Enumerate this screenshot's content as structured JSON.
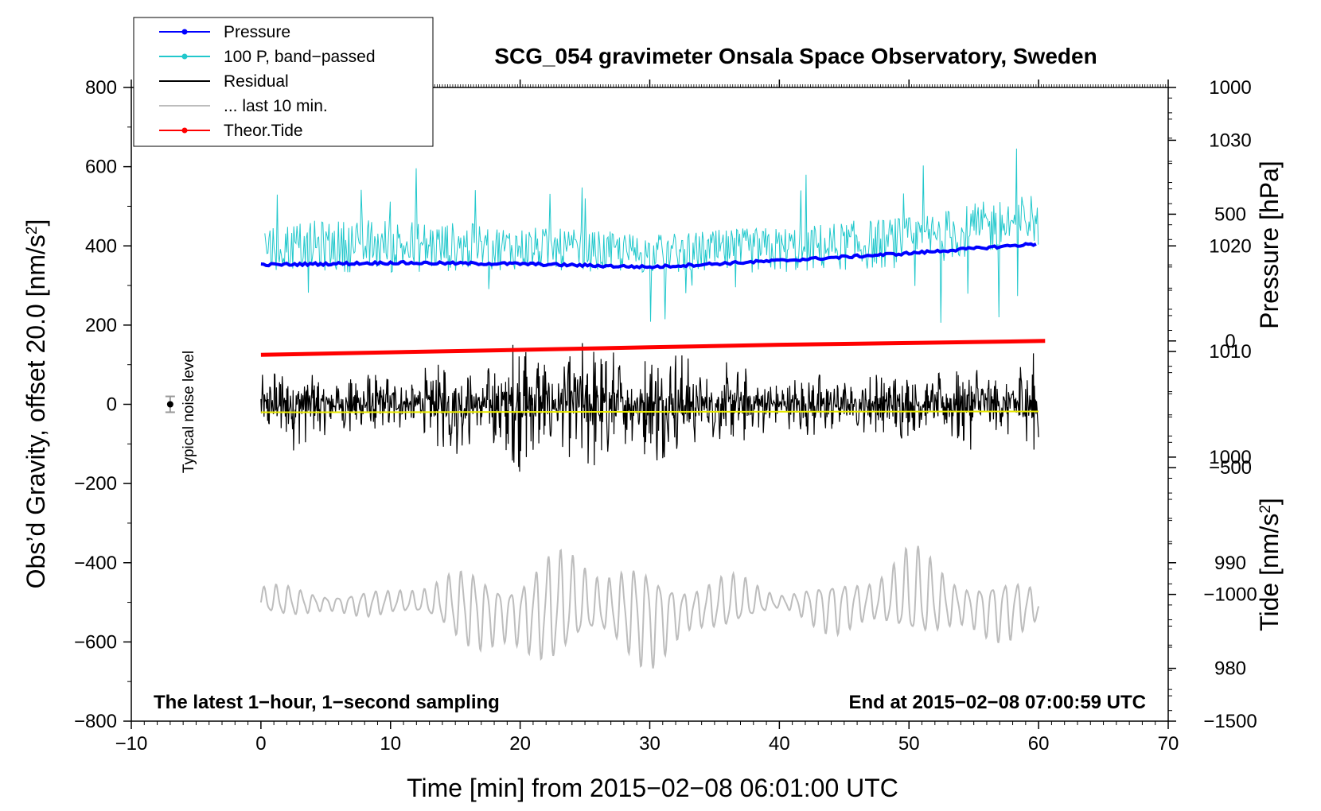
{
  "chart_data": {
    "type": "line",
    "title": "SCG_054 gravimeter Onsala Space Observatory, Sweden",
    "xlabel": "Time [min] from 2015−02−08 06:01:00 UTC",
    "ylabel_left": "Obs’d Gravity, offset 20.0 [nm/s²]",
    "ylabel_left_prefix": "Obs’d Gravity, offset 20.0 [nm/s",
    "ylabel_right_top_text": "Pressure [hPa]",
    "ylabel_right_bottom_prefix": "Tide [nm/s",
    "unit_superscript": "2",
    "unit_close": "]",
    "xlim": [
      -10,
      70
    ],
    "ylim_left": [
      -800,
      800
    ],
    "ylim_pressure": [
      975,
      1035
    ],
    "ylim_tide": [
      -1500,
      1000
    ],
    "x_ticks": [
      "−10",
      "0",
      "10",
      "20",
      "30",
      "40",
      "50",
      "60",
      "70"
    ],
    "y_left_ticks": [
      "800",
      "600",
      "400",
      "200",
      "0",
      "−200",
      "−400",
      "−600",
      "−800"
    ],
    "pressure_ticks": [
      "1030",
      "1020",
      "1010",
      "1000",
      "990",
      "980"
    ],
    "tide_ticks": [
      "1000",
      "500",
      "0",
      "−500",
      "−1000",
      "−1500"
    ],
    "legend": [
      {
        "label": "Pressure",
        "color": "#0000ff",
        "marker": true
      },
      {
        "label": "100 P, band−passed",
        "color": "#22c8cc",
        "marker": true
      },
      {
        "label": "Residual",
        "color": "#000000",
        "marker": false
      },
      {
        "label": "... last 10 min.",
        "color": "#bdbdbd",
        "marker": false
      },
      {
        "label": "Theor.Tide",
        "color": "#ff0000",
        "marker": true
      }
    ],
    "series": [
      {
        "name": "Pressure",
        "axis": "pressure",
        "x": [
          0,
          10,
          20,
          30,
          40,
          50,
          60
        ],
        "values": [
          1018.2,
          1018.4,
          1018.3,
          1018.0,
          1018.6,
          1019.3,
          1020.2
        ]
      },
      {
        "name": "100 P, band-passed",
        "axis": "left",
        "x": [
          0,
          10,
          20,
          30,
          40,
          50,
          60
        ],
        "values": [
          400,
          400,
          395,
          380,
          390,
          410,
          470
        ],
        "amplitude": [
          60,
          70,
          55,
          50,
          60,
          65,
          70
        ]
      },
      {
        "name": "Residual",
        "axis": "left",
        "x": [
          0,
          10,
          20,
          30,
          40,
          50,
          60
        ],
        "values": [
          0,
          0,
          0,
          0,
          0,
          0,
          0
        ],
        "amplitude": [
          130,
          90,
          180,
          170,
          90,
          100,
          140
        ]
      },
      {
        "name": "... last 10 min.",
        "axis": "left",
        "x": [
          0,
          10,
          20,
          30,
          40,
          50,
          60
        ],
        "values": [
          -500,
          -500,
          -520,
          -520,
          -500,
          -500,
          -510
        ],
        "amplitude": [
          50,
          40,
          180,
          160,
          40,
          150,
          80
        ]
      },
      {
        "name": "Theor.Tide",
        "axis": "tide",
        "x": [
          0,
          10,
          20,
          30,
          40,
          50,
          60.5
        ],
        "values": [
          -55,
          -45,
          -35,
          -25,
          -15,
          -8,
          0
        ]
      },
      {
        "name": "Residual mean",
        "axis": "left",
        "x": [
          0,
          60
        ],
        "values": [
          -20,
          -18
        ]
      }
    ],
    "noise_level": {
      "x": -7,
      "value": 0,
      "error": 20,
      "label": "Typical noise level"
    },
    "annotations": {
      "bottom_left": "The latest 1−hour, 1−second sampling",
      "bottom_right": "End at 2015−02−08 07:00:59 UTC"
    }
  }
}
